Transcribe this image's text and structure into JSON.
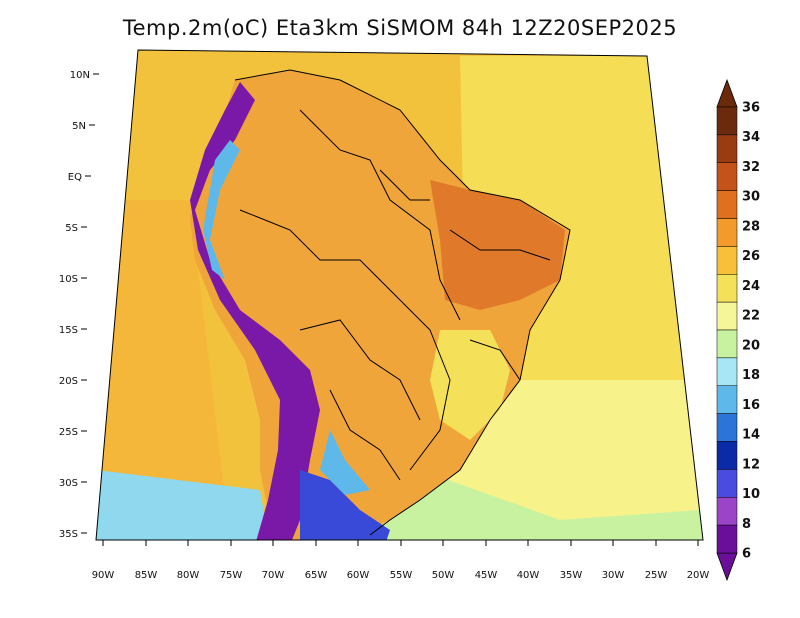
{
  "title": "Temp.2m(oC) Eta3km SiSMOM 84h 12Z20SEP2025",
  "y_axis_labels": [
    "10N",
    "5N",
    "EQ",
    "5S",
    "10S",
    "15S",
    "20S",
    "25S",
    "30S",
    "35S"
  ],
  "x_axis_labels": [
    "90W",
    "85W",
    "80W",
    "75W",
    "70W",
    "65W",
    "60W",
    "55W",
    "50W",
    "45W",
    "40W",
    "35W",
    "30W",
    "25W",
    "20W"
  ],
  "colorbar": {
    "labels": [
      "36",
      "34",
      "32",
      "30",
      "28",
      "26",
      "24",
      "22",
      "20",
      "18",
      "16",
      "14",
      "12",
      "10",
      "8",
      "6"
    ],
    "colors": [
      "#6b2a0c",
      "#9a3c12",
      "#c4521b",
      "#e0701f",
      "#f29a2b",
      "#f7bf3a",
      "#f5e05a",
      "#f5f59a",
      "#c8f2a0",
      "#a6e6f5",
      "#5fb8ea",
      "#2d74d8",
      "#0a2aa8",
      "#4a4ce0",
      "#9b44c8",
      "#6a0f9a"
    ]
  },
  "map_regions": {
    "ocean_north": "#f3c23c",
    "atlantic_east": "#f5dd55",
    "atlantic_south": "#f7f28a",
    "pacific": "#f4b73a",
    "interior": "#f0a53a",
    "northeast_hot": "#e07a2a",
    "andes": "#7a18a8",
    "patagonia": "#3a4ad8",
    "southern_cool": "#8fd8ee"
  }
}
